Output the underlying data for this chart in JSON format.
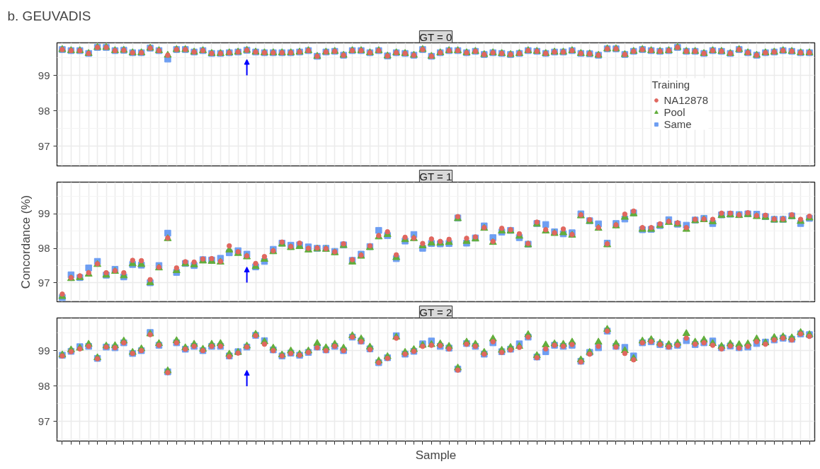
{
  "chart_data": [
    {
      "type": "scatter",
      "title": "b. GEUVADIS",
      "subtitle": "GT = 0",
      "legend_title": "Training",
      "legend": "right",
      "grid": true,
      "tick_labels": "y",
      "categories": [
        null,
        null,
        null,
        null,
        null,
        null,
        null,
        null,
        null,
        null,
        null,
        null,
        null,
        null,
        null,
        null,
        null,
        null,
        null,
        null,
        null,
        null,
        null,
        null,
        null,
        null,
        null,
        null,
        null,
        null,
        null,
        null,
        null,
        null,
        null,
        null,
        null,
        null,
        null,
        null,
        null,
        null,
        null,
        null,
        null,
        null,
        null,
        null,
        null,
        null,
        null,
        null,
        null,
        null,
        null,
        null,
        null,
        null,
        null,
        null,
        null,
        null,
        null,
        null,
        null,
        null,
        null,
        null,
        null,
        null,
        null,
        null,
        null,
        null,
        null,
        null,
        null,
        null,
        null,
        null,
        null,
        null,
        null,
        null,
        null,
        null
      ],
      "ylim": [
        96.45,
        99.92
      ],
      "yticks": [
        97,
        98,
        99
      ],
      "series": [
        {
          "name": "NA12878",
          "color": "#e0675f",
          "marker": "circle",
          "values": [
            99.73,
            99.7,
            99.7,
            99.62,
            99.79,
            99.79,
            99.7,
            99.71,
            99.64,
            99.64,
            99.77,
            99.7,
            99.57,
            99.73,
            99.73,
            99.66,
            99.7,
            99.62,
            99.62,
            99.64,
            99.66,
            99.71,
            99.66,
            99.64,
            99.64,
            99.64,
            99.64,
            99.66,
            99.7,
            99.54,
            99.66,
            99.68,
            99.57,
            99.7,
            99.7,
            99.64,
            99.7,
            99.55,
            99.64,
            99.62,
            99.57,
            99.73,
            99.54,
            99.64,
            99.7,
            99.7,
            99.64,
            99.68,
            99.59,
            99.64,
            99.62,
            99.59,
            99.62,
            99.7,
            99.68,
            99.62,
            99.66,
            99.66,
            99.7,
            99.62,
            99.61,
            99.57,
            99.75,
            99.75,
            99.59,
            99.68,
            99.73,
            99.7,
            99.68,
            99.7,
            99.79,
            99.68,
            99.68,
            99.62,
            99.7,
            99.68,
            99.62,
            99.73,
            99.64,
            99.57,
            99.64,
            99.66,
            99.7,
            99.68,
            99.64,
            99.64
          ]
        },
        {
          "name": "Pool",
          "color": "#62ae3c",
          "marker": "triangle",
          "values": [
            99.73,
            99.7,
            99.7,
            99.62,
            99.79,
            99.79,
            99.7,
            99.71,
            99.64,
            99.64,
            99.77,
            99.7,
            99.57,
            99.73,
            99.73,
            99.66,
            99.7,
            99.62,
            99.62,
            99.64,
            99.66,
            99.71,
            99.66,
            99.64,
            99.64,
            99.64,
            99.64,
            99.66,
            99.7,
            99.54,
            99.66,
            99.68,
            99.57,
            99.7,
            99.7,
            99.64,
            99.7,
            99.55,
            99.64,
            99.62,
            99.57,
            99.73,
            99.54,
            99.64,
            99.7,
            99.7,
            99.64,
            99.68,
            99.59,
            99.64,
            99.62,
            99.59,
            99.62,
            99.7,
            99.68,
            99.62,
            99.66,
            99.66,
            99.7,
            99.62,
            99.61,
            99.57,
            99.75,
            99.75,
            99.59,
            99.68,
            99.73,
            99.7,
            99.68,
            99.7,
            99.79,
            99.68,
            99.68,
            99.62,
            99.7,
            99.68,
            99.62,
            99.73,
            99.64,
            99.57,
            99.64,
            99.66,
            99.7,
            99.68,
            99.64,
            99.64
          ]
        },
        {
          "name": "Same",
          "color": "#6e9ef2",
          "marker": "square",
          "values": [
            99.73,
            99.7,
            99.7,
            99.62,
            99.79,
            99.79,
            99.7,
            99.71,
            99.64,
            99.64,
            99.77,
            99.7,
            99.46,
            99.73,
            99.73,
            99.66,
            99.7,
            99.62,
            99.62,
            99.64,
            99.66,
            99.71,
            99.66,
            99.64,
            99.64,
            99.64,
            99.64,
            99.66,
            99.7,
            99.54,
            99.66,
            99.68,
            99.57,
            99.7,
            99.7,
            99.64,
            99.7,
            99.55,
            99.64,
            99.62,
            99.57,
            99.73,
            99.54,
            99.64,
            99.7,
            99.7,
            99.64,
            99.68,
            99.59,
            99.64,
            99.62,
            99.59,
            99.62,
            99.7,
            99.68,
            99.62,
            99.66,
            99.66,
            99.7,
            99.62,
            99.61,
            99.57,
            99.75,
            99.75,
            99.59,
            99.68,
            99.73,
            99.7,
            99.68,
            99.7,
            99.79,
            99.68,
            99.68,
            99.62,
            99.7,
            99.68,
            99.62,
            99.73,
            99.64,
            99.57,
            99.64,
            99.66,
            99.7,
            99.68,
            99.64,
            99.64
          ]
        }
      ]
    },
    {
      "type": "scatter",
      "subtitle": "GT = 1",
      "ylabel": "Concordance (%)",
      "grid": true,
      "tick_labels": "y",
      "categories": [
        null,
        null,
        null,
        null,
        null,
        null,
        null,
        null,
        null,
        null,
        null,
        null,
        null,
        null,
        null,
        null,
        null,
        null,
        null,
        null,
        null,
        null,
        null,
        null,
        null,
        null,
        null,
        null,
        null,
        null,
        null,
        null,
        null,
        null,
        null,
        null,
        null,
        null,
        null,
        null,
        null,
        null,
        null,
        null,
        null,
        null,
        null,
        null,
        null,
        null,
        null,
        null,
        null,
        null,
        null,
        null,
        null,
        null,
        null,
        null,
        null,
        null,
        null,
        null,
        null,
        null,
        null,
        null,
        null,
        null,
        null,
        null,
        null,
        null,
        null,
        null,
        null,
        null,
        null,
        null,
        null,
        null,
        null,
        null,
        null,
        null
      ],
      "ylim": [
        96.45,
        99.92
      ],
      "yticks": [
        97,
        98,
        99
      ],
      "series": [
        {
          "color": "#e0675f",
          "marker": "circle",
          "values": [
            96.67,
            97.15,
            97.2,
            97.29,
            97.55,
            97.29,
            97.35,
            97.29,
            97.65,
            97.64,
            97.09,
            97.45,
            98.3,
            97.43,
            97.61,
            97.6,
            97.69,
            97.7,
            97.62,
            98.07,
            97.9,
            97.78,
            97.56,
            97.76,
            97.93,
            98.18,
            98.05,
            98.15,
            98.0,
            98.01,
            97.99,
            97.9,
            98.13,
            97.67,
            97.8,
            98.07,
            98.37,
            98.48,
            97.81,
            98.32,
            98.3,
            98.14,
            98.27,
            98.2,
            98.26,
            98.92,
            98.29,
            98.33,
            98.6,
            98.2,
            98.58,
            98.54,
            98.42,
            98.14,
            98.76,
            98.54,
            98.45,
            98.56,
            98.4,
            98.97,
            98.83,
            98.6,
            98.13,
            98.68,
            98.99,
            99.08,
            98.6,
            98.6,
            98.71,
            98.78,
            98.74,
            98.6,
            98.84,
            98.85,
            98.84,
            99.02,
            99.02,
            98.97,
            99.03,
            98.95,
            98.96,
            98.85,
            98.85,
            98.97,
            98.84,
            98.93
          ]
        },
        {
          "color": "#62ae3c",
          "marker": "triangle",
          "values": [
            96.6,
            97.12,
            97.15,
            97.25,
            97.53,
            97.22,
            97.33,
            97.2,
            97.55,
            97.53,
            97.0,
            97.43,
            98.28,
            97.35,
            97.55,
            97.52,
            97.63,
            97.62,
            97.6,
            97.95,
            97.85,
            97.75,
            97.47,
            97.68,
            97.9,
            98.12,
            98.02,
            98.05,
            97.95,
            97.98,
            97.97,
            97.87,
            98.08,
            97.6,
            97.77,
            98.02,
            98.33,
            98.4,
            97.73,
            98.25,
            98.28,
            98.07,
            98.15,
            98.15,
            98.17,
            98.86,
            98.2,
            98.27,
            98.58,
            98.17,
            98.5,
            98.5,
            98.35,
            98.1,
            98.7,
            98.5,
            98.43,
            98.45,
            98.38,
            98.94,
            98.78,
            98.58,
            98.1,
            98.65,
            98.9,
            99.0,
            98.55,
            98.55,
            98.66,
            98.75,
            98.7,
            98.55,
            98.8,
            98.83,
            98.77,
            98.95,
            98.97,
            98.95,
            98.98,
            98.92,
            98.9,
            98.82,
            98.82,
            98.92,
            98.78,
            98.88
          ]
        },
        {
          "color": "#6e9ef2",
          "marker": "square",
          "values": [
            96.57,
            97.23,
            97.15,
            97.43,
            97.62,
            97.22,
            97.39,
            97.17,
            97.53,
            97.51,
            97.0,
            97.5,
            98.44,
            97.3,
            97.56,
            97.5,
            97.67,
            97.66,
            97.71,
            97.87,
            97.93,
            97.83,
            97.46,
            97.62,
            97.97,
            98.15,
            98.09,
            98.1,
            98.04,
            98.0,
            98.0,
            97.91,
            98.1,
            97.65,
            97.83,
            98.05,
            98.52,
            98.37,
            97.7,
            98.21,
            98.4,
            98.0,
            98.14,
            98.13,
            98.14,
            98.88,
            98.15,
            98.3,
            98.65,
            98.31,
            98.47,
            98.52,
            98.31,
            98.12,
            98.72,
            98.69,
            98.48,
            98.42,
            98.45,
            99.0,
            98.8,
            98.71,
            98.15,
            98.72,
            98.85,
            99.03,
            98.54,
            98.55,
            98.66,
            98.83,
            98.7,
            98.67,
            98.82,
            98.87,
            98.72,
            98.97,
            98.99,
            98.98,
            99.0,
            98.99,
            98.92,
            98.84,
            98.84,
            98.94,
            98.72,
            98.87
          ]
        }
      ]
    },
    {
      "type": "scatter",
      "subtitle": "GT = 2",
      "xlabel": "Sample",
      "grid": true,
      "tick_labels": "y",
      "categories": [
        null,
        null,
        null,
        null,
        null,
        null,
        null,
        null,
        null,
        null,
        null,
        null,
        null,
        null,
        null,
        null,
        null,
        null,
        null,
        null,
        null,
        null,
        null,
        null,
        null,
        null,
        null,
        null,
        null,
        null,
        null,
        null,
        null,
        null,
        null,
        null,
        null,
        null,
        null,
        null,
        null,
        null,
        null,
        null,
        null,
        null,
        null,
        null,
        null,
        null,
        null,
        null,
        null,
        null,
        null,
        null,
        null,
        null,
        null,
        null,
        null,
        null,
        null,
        null,
        null,
        null,
        null,
        null,
        null,
        null,
        null,
        null,
        null,
        null,
        null,
        null,
        null,
        null,
        null,
        null,
        null,
        null,
        null,
        null,
        null,
        null
      ],
      "ylim": [
        96.45,
        99.92
      ],
      "yticks": [
        97,
        98,
        99
      ],
      "series": [
        {
          "color": "#e0675f",
          "marker": "circle",
          "values": [
            98.85,
            98.97,
            99.05,
            99.12,
            98.77,
            99.1,
            99.08,
            99.22,
            98.92,
            99.0,
            99.45,
            99.15,
            98.38,
            99.22,
            99.04,
            99.12,
            99.0,
            99.12,
            99.12,
            98.83,
            98.93,
            99.1,
            99.42,
            99.18,
            99.0,
            98.85,
            98.92,
            98.87,
            98.95,
            99.08,
            99.0,
            99.12,
            99.0,
            99.38,
            99.25,
            99.03,
            98.66,
            98.78,
            99.35,
            98.9,
            98.98,
            99.12,
            99.15,
            99.14,
            99.05,
            98.45,
            99.18,
            99.12,
            98.9,
            99.25,
            98.95,
            99.02,
            99.09,
            99.38,
            98.8,
            99.05,
            99.15,
            99.12,
            99.17,
            98.68,
            98.9,
            99.12,
            99.55,
            99.1,
            98.92,
            98.74,
            99.22,
            99.25,
            99.17,
            99.1,
            99.15,
            99.35,
            99.18,
            99.22,
            99.15,
            99.05,
            99.13,
            99.07,
            99.12,
            99.25,
            99.18,
            99.3,
            99.35,
            99.3,
            99.47,
            99.4
          ]
        },
        {
          "color": "#62ae3c",
          "marker": "triangle",
          "values": [
            98.88,
            99.02,
            99.07,
            99.18,
            98.8,
            99.13,
            99.14,
            99.27,
            98.95,
            99.05,
            99.47,
            99.2,
            98.43,
            99.28,
            99.08,
            99.18,
            99.04,
            99.18,
            99.2,
            98.9,
            98.95,
            99.13,
            99.46,
            99.25,
            99.07,
            98.88,
            98.99,
            98.9,
            98.99,
            99.2,
            99.08,
            99.18,
            99.07,
            99.42,
            99.33,
            99.1,
            98.71,
            98.83,
            99.38,
            98.95,
            99.03,
            99.15,
            99.17,
            99.19,
            99.12,
            98.51,
            99.24,
            99.18,
            98.95,
            99.33,
            99.01,
            99.09,
            99.12,
            99.45,
            98.86,
            99.16,
            99.19,
            99.18,
            99.24,
            98.74,
            98.95,
            99.24,
            99.6,
            99.19,
            99.0,
            98.78,
            99.27,
            99.31,
            99.21,
            99.17,
            99.21,
            99.48,
            99.24,
            99.3,
            99.2,
            99.12,
            99.19,
            99.17,
            99.19,
            99.33,
            99.22,
            99.37,
            99.39,
            99.36,
            99.51,
            99.45
          ]
        },
        {
          "color": "#6e9ef2",
          "marker": "square",
          "values": [
            98.87,
            98.98,
            99.11,
            99.12,
            98.78,
            99.1,
            99.08,
            99.22,
            98.92,
            99.0,
            99.51,
            99.15,
            98.4,
            99.22,
            99.04,
            99.12,
            99.0,
            99.12,
            99.12,
            98.85,
            98.97,
            99.1,
            99.43,
            99.28,
            99.02,
            98.85,
            98.93,
            98.87,
            98.95,
            99.1,
            99.02,
            99.12,
            99.0,
            99.38,
            99.27,
            99.05,
            98.66,
            98.8,
            99.42,
            98.9,
            98.98,
            99.19,
            99.27,
            99.12,
            99.07,
            98.48,
            99.2,
            99.12,
            98.9,
            99.22,
            98.97,
            99.04,
            99.19,
            99.38,
            98.82,
            98.97,
            99.15,
            99.12,
            99.15,
            98.7,
            98.95,
            99.08,
            99.55,
            99.12,
            99.09,
            98.85,
            99.22,
            99.25,
            99.17,
            99.12,
            99.15,
            99.28,
            99.17,
            99.22,
            99.27,
            99.08,
            99.13,
            99.08,
            99.1,
            99.2,
            99.24,
            99.3,
            99.35,
            99.32,
            99.47,
            99.45
          ]
        }
      ]
    }
  ]
}
